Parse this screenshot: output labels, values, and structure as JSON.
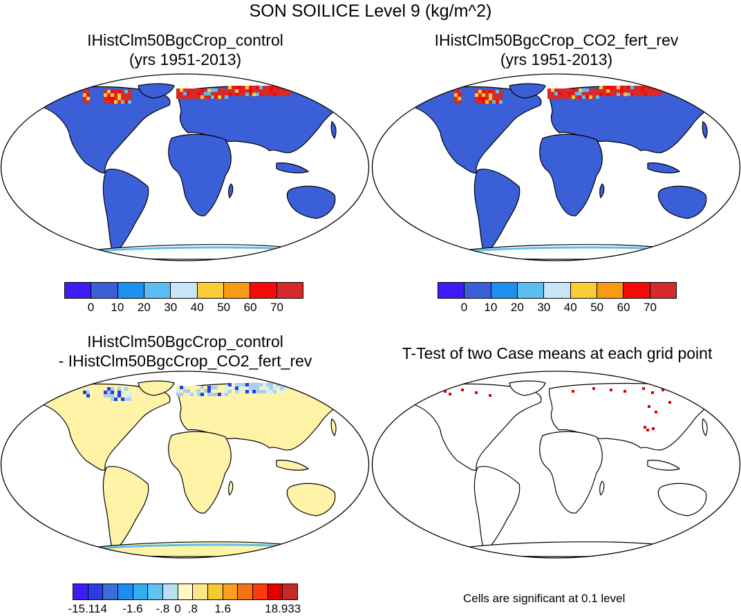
{
  "title": "SON SOILICE Level 9 (kg/m^2)",
  "panels": [
    {
      "id": "control",
      "title1": "IHistClm50BgcCrop_control",
      "title2": "(yrs 1951-2013)",
      "land_color": "#3a5fd6",
      "north_color": "#d42a2a"
    },
    {
      "id": "co2",
      "title1": "IHistClm50BgcCrop_CO2_fert_rev",
      "title2": "(yrs 1951-2013)",
      "land_color": "#3a5fd6",
      "north_color": "#d42a2a"
    },
    {
      "id": "diff",
      "title1": "IHistClm50BgcCrop_control",
      "title2": "- IHistClm50BgcCrop_CO2_fert_rev",
      "land_color": "#fff3a8",
      "north_color": "#a8d0ec"
    },
    {
      "id": "ttest",
      "title1": "T-Test of two Case means at each grid point",
      "title2": "",
      "land_color": "#ffffff",
      "north_color": "#e00000"
    }
  ],
  "colorbar_main": {
    "colors": [
      "#3e1cf7",
      "#3a5fd6",
      "#1e90f0",
      "#5bbef2",
      "#c8e6f8",
      "#f8cd35",
      "#f89a12",
      "#f50a0a",
      "#d42a2a"
    ],
    "labels": [
      "0",
      "10",
      "20",
      "30",
      "40",
      "50",
      "60",
      "70"
    ]
  },
  "colorbar_diff": {
    "colors": [
      "#3e1cf7",
      "#2a3ee6",
      "#3a6ed8",
      "#1e8cf0",
      "#33adf2",
      "#60c4f0",
      "#b8e0f4",
      "#fff9c8",
      "#fde68a",
      "#f8c830",
      "#f8a020",
      "#f87018",
      "#f83c10",
      "#e00000",
      "#c42a2a"
    ],
    "labels": [
      "-15.114",
      "-1.6",
      "-.8",
      "0",
      ".8",
      "1.6",
      "18.933"
    ]
  },
  "note": "Cells are significant at 0.1 level"
}
